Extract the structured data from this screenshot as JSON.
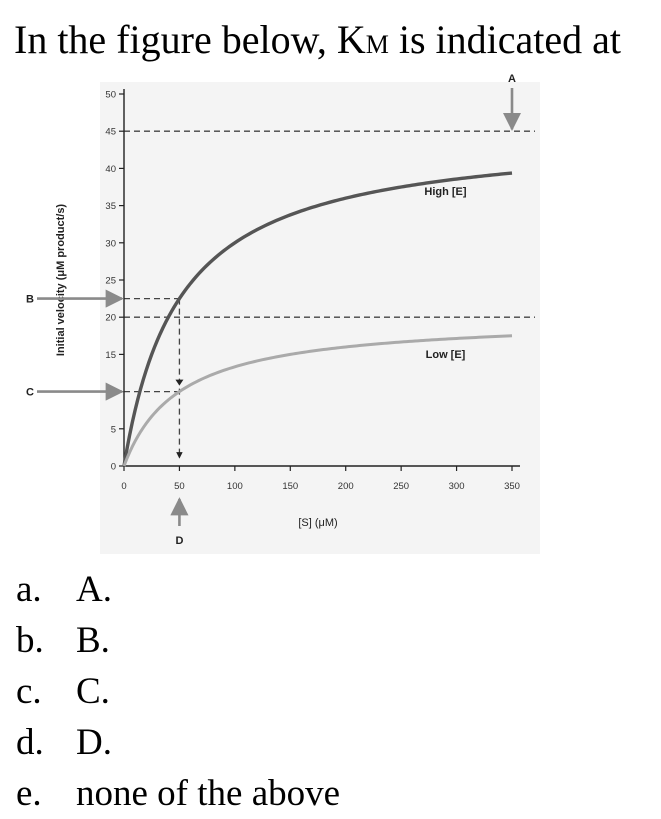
{
  "question": {
    "prefix": "In the figure below, K",
    "subscript": "M",
    "suffix": " is indicated at"
  },
  "chart_data": {
    "type": "line",
    "xlabel": "[S] (μM)",
    "ylabel": "Initial velocity (μM product/s)",
    "xlim": [
      0,
      350
    ],
    "ylim": [
      0,
      50
    ],
    "xticks": [
      0,
      50,
      100,
      150,
      200,
      250,
      300,
      350
    ],
    "yticks": [
      0,
      5,
      10,
      15,
      20,
      25,
      30,
      35,
      40,
      45,
      50
    ],
    "series": [
      {
        "name": "High [E]",
        "vmax": 45,
        "km": 50,
        "x": [
          0,
          10,
          25,
          50,
          75,
          100,
          150,
          200,
          250,
          300,
          350
        ],
        "y": [
          0,
          7.5,
          15,
          22.5,
          27,
          30,
          33.75,
          36,
          37.5,
          38.6,
          39.4
        ],
        "color": "#555555"
      },
      {
        "name": "Low [E]",
        "vmax": 20,
        "km": 50,
        "x": [
          0,
          10,
          25,
          50,
          75,
          100,
          150,
          200,
          250,
          300,
          350
        ],
        "y": [
          0,
          3.3,
          6.7,
          10,
          12,
          13.3,
          15,
          16,
          16.7,
          17.1,
          17.5
        ],
        "color": "#aaaaaa"
      }
    ],
    "reference_lines": {
      "horizontal": [
        45,
        22.5,
        20,
        10
      ],
      "vertical": [
        50
      ]
    },
    "annotations": [
      {
        "label": "A",
        "target": "y = 45 (Vmax, High [E])"
      },
      {
        "label": "B",
        "target": "y = 22.5"
      },
      {
        "label": "C",
        "target": "y = 10"
      },
      {
        "label": "D",
        "target": "x = 50"
      }
    ]
  },
  "options": [
    {
      "letter": "a.",
      "text": "A."
    },
    {
      "letter": "b.",
      "text": "B."
    },
    {
      "letter": "c.",
      "text": "C."
    },
    {
      "letter": "d.",
      "text": "D."
    },
    {
      "letter": "e.",
      "text": "none of the above"
    }
  ]
}
